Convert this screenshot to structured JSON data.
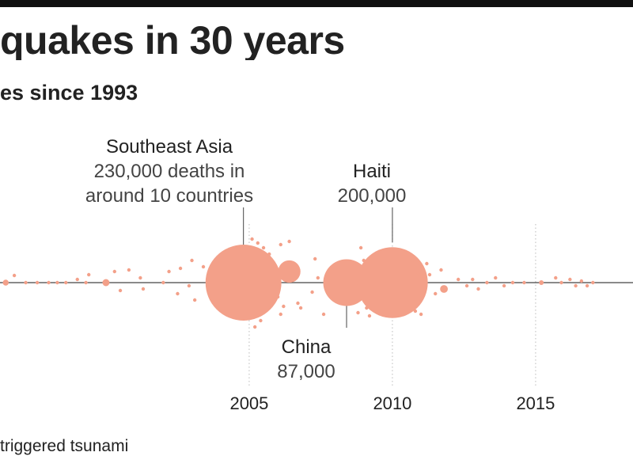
{
  "title": "quakes in 30 years",
  "subtitle": "es since 1993",
  "footnote": "triggered tsunami",
  "colors": {
    "bubble": "#f3a089",
    "axis": "#444444",
    "gridline": "#bbbbbb",
    "topbar": "#111111",
    "text": "#222222"
  },
  "chart_data": {
    "type": "scatter",
    "x_ticks": [
      2005,
      2010,
      2015
    ],
    "xlim": [
      1996.3,
      2018.4
    ],
    "annotations": [
      {
        "title": "Southeast Asia",
        "lines": [
          "230,000 deaths in",
          "around 10 countries"
        ],
        "year": 2004.8
      },
      {
        "title": "Haiti",
        "lines": [
          "200,000"
        ],
        "year": 2010.0
      },
      {
        "title": "China",
        "lines": [
          "87,000"
        ],
        "year": 2008.4
      }
    ],
    "bubbles": [
      {
        "year": 1996.5,
        "deaths": 1400,
        "offset": 0
      },
      {
        "year": 1996.8,
        "deaths": 50,
        "offset": -9
      },
      {
        "year": 1997.2,
        "deaths": 20,
        "offset": 0
      },
      {
        "year": 1997.6,
        "deaths": 60,
        "offset": 0
      },
      {
        "year": 1998.0,
        "deaths": 40,
        "offset": 0
      },
      {
        "year": 1998.3,
        "deaths": 30,
        "offset": 0
      },
      {
        "year": 1998.6,
        "deaths": 40,
        "offset": 0
      },
      {
        "year": 1999.0,
        "deaths": 100,
        "offset": -4
      },
      {
        "year": 1999.3,
        "deaths": 30,
        "offset": 0
      },
      {
        "year": 1999.4,
        "deaths": 20,
        "offset": -10
      },
      {
        "year": 2000.0,
        "deaths": 2000,
        "offset": 0
      },
      {
        "year": 2000.3,
        "deaths": 15,
        "offset": -14
      },
      {
        "year": 2000.5,
        "deaths": 15,
        "offset": 10
      },
      {
        "year": 2000.8,
        "deaths": 25,
        "offset": -16
      },
      {
        "year": 2001.2,
        "deaths": 15,
        "offset": -6
      },
      {
        "year": 2001.3,
        "deaths": 15,
        "offset": 8
      },
      {
        "year": 2002.0,
        "deaths": 25,
        "offset": 0
      },
      {
        "year": 2002.2,
        "deaths": 20,
        "offset": -14
      },
      {
        "year": 2002.5,
        "deaths": 15,
        "offset": 14
      },
      {
        "year": 2002.6,
        "deaths": 20,
        "offset": -18
      },
      {
        "year": 2002.9,
        "deaths": 25,
        "offset": 4
      },
      {
        "year": 2003.0,
        "deaths": 15,
        "offset": -28
      },
      {
        "year": 2003.1,
        "deaths": 20,
        "offset": 22
      },
      {
        "year": 2003.4,
        "deaths": 15,
        "offset": -20
      },
      {
        "year": 2004.8,
        "deaths": 230000,
        "offset": 0
      },
      {
        "year": 2005.1,
        "deaths": 40,
        "offset": -55
      },
      {
        "year": 2005.3,
        "deaths": 20,
        "offset": -50
      },
      {
        "year": 2005.5,
        "deaths": 15,
        "offset": -44
      },
      {
        "year": 2005.7,
        "deaths": 15,
        "offset": -36
      },
      {
        "year": 2005.2,
        "deaths": 15,
        "offset": 56
      },
      {
        "year": 2005.4,
        "deaths": 15,
        "offset": 48
      },
      {
        "year": 2005.8,
        "deaths": 25,
        "offset": -22
      },
      {
        "year": 2005.9,
        "deaths": 15,
        "offset": 18
      },
      {
        "year": 2006.4,
        "deaths": 20000,
        "offset": -14
      },
      {
        "year": 2006.1,
        "deaths": 40,
        "offset": -48
      },
      {
        "year": 2006.4,
        "deaths": 40,
        "offset": -52
      },
      {
        "year": 2006.0,
        "deaths": 30,
        "offset": 18
      },
      {
        "year": 2006.2,
        "deaths": 20,
        "offset": 30
      },
      {
        "year": 2006.7,
        "deaths": 20,
        "offset": 26
      },
      {
        "year": 2006.1,
        "deaths": 230,
        "offset": 40
      },
      {
        "year": 2006.8,
        "deaths": 80,
        "offset": 32
      },
      {
        "year": 2007.2,
        "deaths": 25,
        "offset": 12
      },
      {
        "year": 2007.3,
        "deaths": 15,
        "offset": -30
      },
      {
        "year": 2007.6,
        "deaths": 15,
        "offset": 40
      },
      {
        "year": 2007.4,
        "deaths": 20,
        "offset": -6
      },
      {
        "year": 2008.4,
        "deaths": 87000,
        "offset": 0
      },
      {
        "year": 2008.9,
        "deaths": 40,
        "offset": -44
      },
      {
        "year": 2009.0,
        "deaths": 25,
        "offset": -28
      },
      {
        "year": 2009.1,
        "deaths": 20,
        "offset": -14
      },
      {
        "year": 2009.0,
        "deaths": 20,
        "offset": 14
      },
      {
        "year": 2009.2,
        "deaths": 25,
        "offset": 30
      },
      {
        "year": 2009.1,
        "deaths": 40,
        "offset": 32
      },
      {
        "year": 2009.2,
        "deaths": 15,
        "offset": 42
      },
      {
        "year": 2008.8,
        "deaths": 30,
        "offset": 38
      },
      {
        "year": 2009.3,
        "deaths": 20,
        "offset": -34
      },
      {
        "year": 2010.0,
        "deaths": 200000,
        "offset": 0
      },
      {
        "year": 2010.7,
        "deaths": 40,
        "offset": -28
      },
      {
        "year": 2010.9,
        "deaths": 25,
        "offset": -12
      },
      {
        "year": 2010.8,
        "deaths": 130,
        "offset": 36
      },
      {
        "year": 2011.0,
        "deaths": 230,
        "offset": 40
      },
      {
        "year": 2011.2,
        "deaths": 20,
        "offset": -24
      },
      {
        "year": 2011.3,
        "deaths": 20,
        "offset": -10
      },
      {
        "year": 2011.5,
        "deaths": 15,
        "offset": 14
      },
      {
        "year": 2011.7,
        "deaths": 15,
        "offset": -16
      },
      {
        "year": 2011.8,
        "deaths": 2400,
        "offset": 8
      },
      {
        "year": 2012.3,
        "deaths": 20,
        "offset": -4
      },
      {
        "year": 2012.6,
        "deaths": 25,
        "offset": 4
      },
      {
        "year": 2012.8,
        "deaths": 20,
        "offset": -4
      },
      {
        "year": 2013.0,
        "deaths": 20,
        "offset": 8
      },
      {
        "year": 2013.3,
        "deaths": 25,
        "offset": 0
      },
      {
        "year": 2013.6,
        "deaths": 15,
        "offset": -6
      },
      {
        "year": 2013.9,
        "deaths": 20,
        "offset": 4
      },
      {
        "year": 2014.2,
        "deaths": 15,
        "offset": 0
      },
      {
        "year": 2014.6,
        "deaths": 20,
        "offset": 0
      },
      {
        "year": 2015.2,
        "deaths": 900,
        "offset": 0
      },
      {
        "year": 2015.7,
        "deaths": 20,
        "offset": -6
      },
      {
        "year": 2015.9,
        "deaths": 30,
        "offset": 0
      },
      {
        "year": 2016.2,
        "deaths": 20,
        "offset": -4
      },
      {
        "year": 2016.4,
        "deaths": 25,
        "offset": 4
      },
      {
        "year": 2016.6,
        "deaths": 20,
        "offset": -2
      },
      {
        "year": 2016.8,
        "deaths": 20,
        "offset": 4
      },
      {
        "year": 2017.0,
        "deaths": 20,
        "offset": 0
      }
    ]
  }
}
